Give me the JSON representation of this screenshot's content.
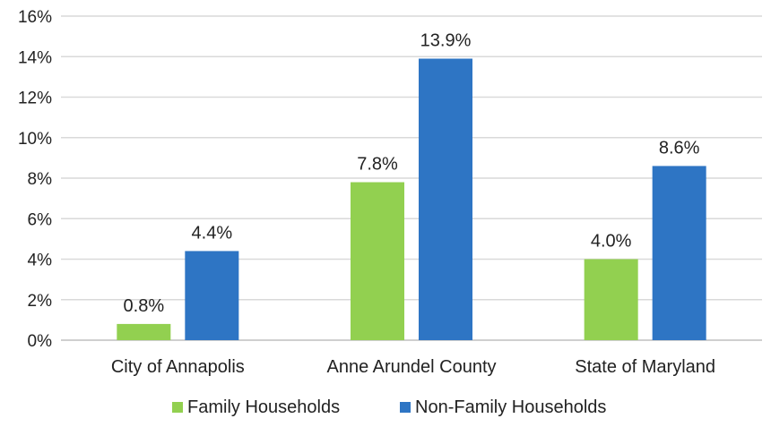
{
  "chart_data": {
    "type": "bar",
    "title": "",
    "xlabel": "",
    "ylabel": "",
    "categories": [
      "City of Annapolis",
      "Anne Arundel County",
      "State of Maryland"
    ],
    "series": [
      {
        "name": "Family Households",
        "color": "#92d050",
        "values": [
          0.8,
          7.8,
          4.0
        ],
        "labels": [
          "0.8%",
          "7.8%",
          "4.0%"
        ]
      },
      {
        "name": "Non-Family Households",
        "color": "#2e75c4",
        "values": [
          4.4,
          13.9,
          8.6
        ],
        "labels": [
          "4.4%",
          "13.9%",
          "8.6%"
        ]
      }
    ],
    "ylim": [
      0,
      16
    ],
    "yticks": [
      0,
      2,
      4,
      6,
      8,
      10,
      12,
      14,
      16
    ],
    "ytick_labels": [
      "0%",
      "2%",
      "4%",
      "6%",
      "8%",
      "10%",
      "12%",
      "14%",
      "16%"
    ],
    "grid": true,
    "legend_position": "bottom"
  }
}
